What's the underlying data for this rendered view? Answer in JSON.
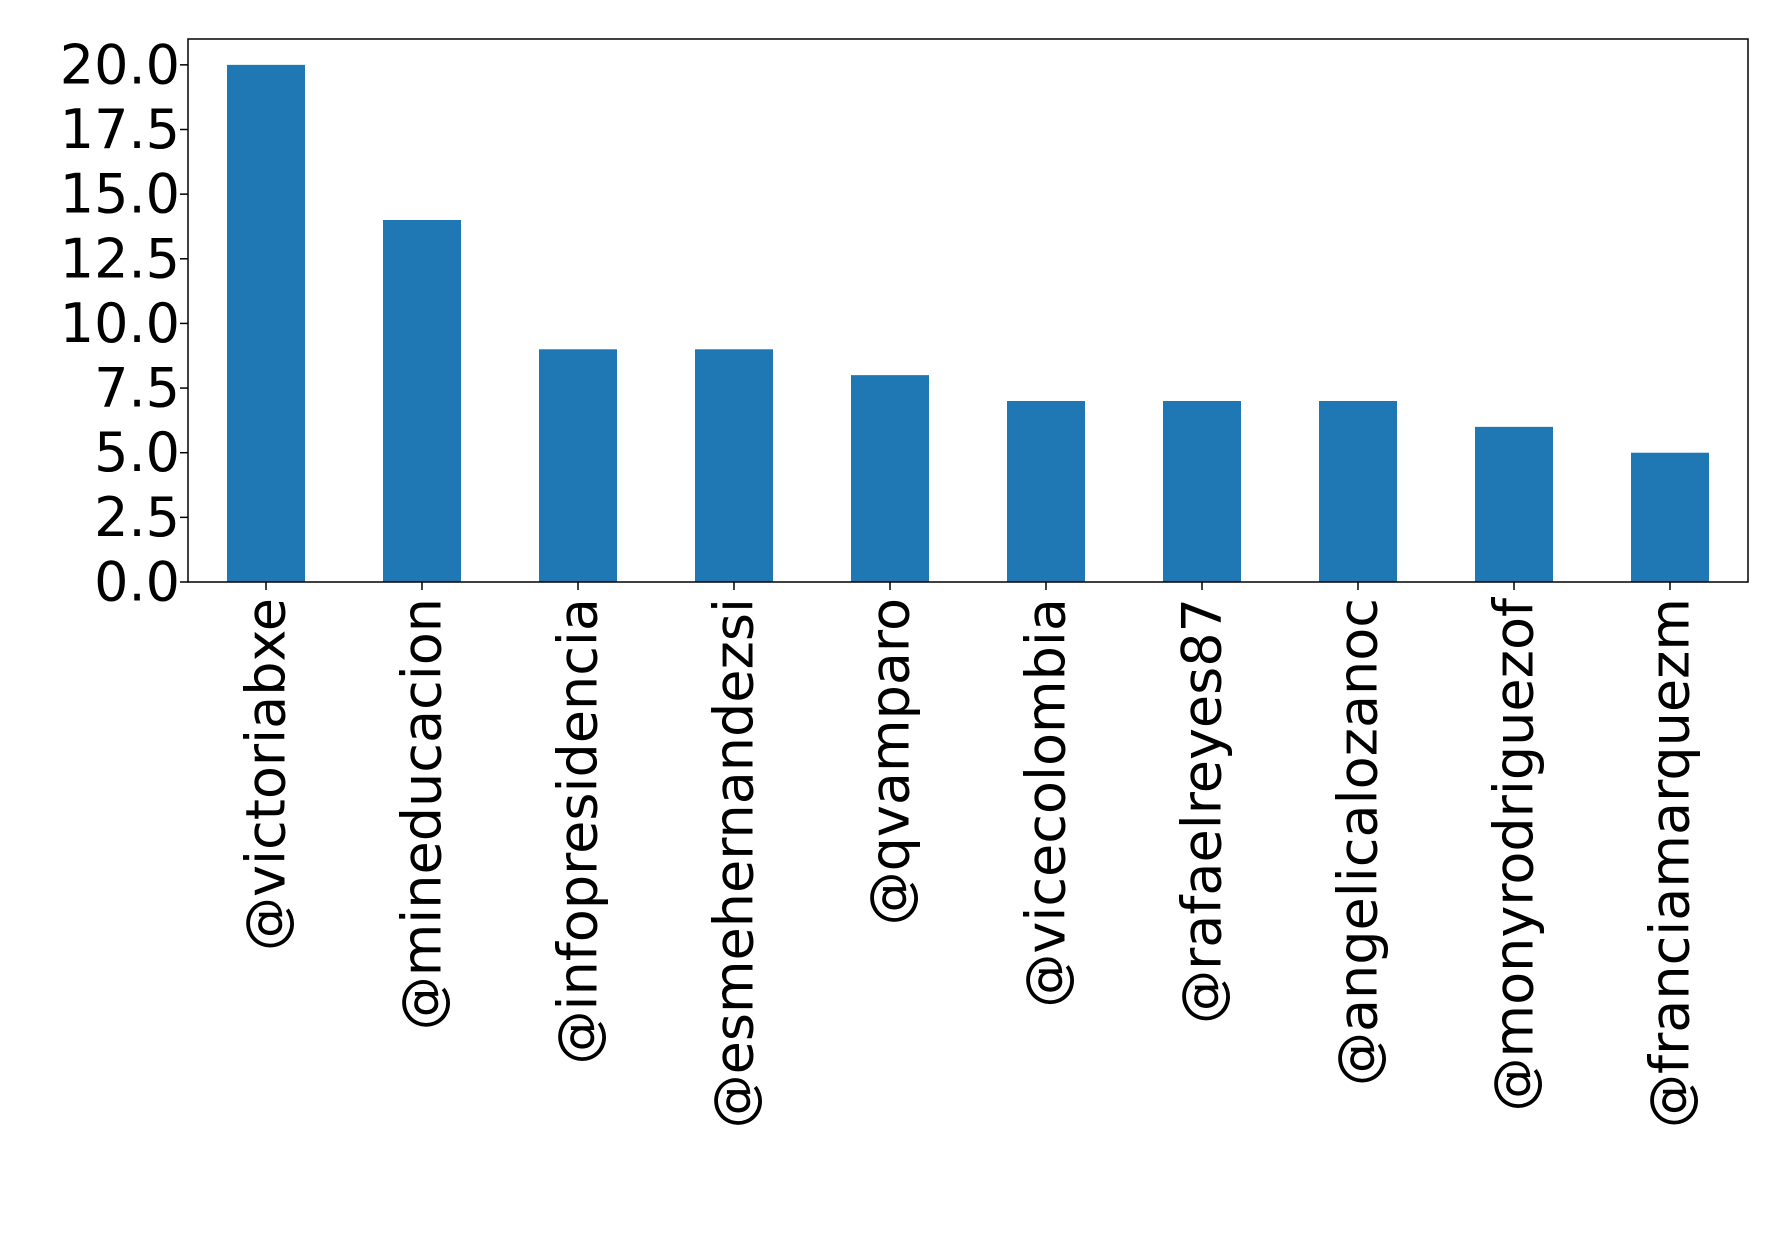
{
  "chart_data": {
    "type": "bar",
    "categories": [
      "@victoriabxe",
      "@mineducacion",
      "@infopresidencia",
      "@esmehernandezsi",
      "@qvamparo",
      "@vicecolombia",
      "@rafaelreyes87",
      "@angelicalozanoc",
      "@monyrodriguezof",
      "@franciamarquezm"
    ],
    "values": [
      20,
      14,
      9,
      9,
      8,
      7,
      7,
      7,
      6,
      5
    ],
    "yticks": [
      "0.0",
      "2.5",
      "5.0",
      "7.5",
      "10.0",
      "12.5",
      "15.0",
      "17.5",
      "20.0"
    ],
    "ylim": [
      0,
      21
    ],
    "title": "",
    "xlabel": "",
    "ylabel": "",
    "bar_color": "#1f77b4",
    "grid": false,
    "legend": "none"
  }
}
